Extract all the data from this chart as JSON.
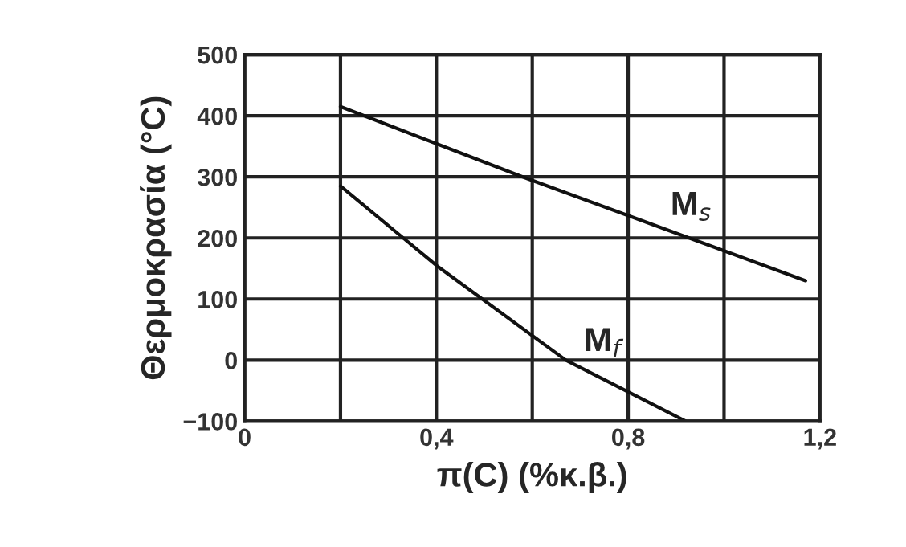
{
  "chart_data": {
    "type": "line",
    "xlabel": "π(C) (%κ.β.)",
    "ylabel": "Θερμοκρασία (°C)",
    "series": [
      {
        "color": "#111111",
        "x": [
          0.2,
          0.58,
          1.17
        ],
        "values": [
          415,
          300,
          130
        ]
      },
      {
        "color": "#111111",
        "x": [
          0.2,
          0.4,
          0.67,
          0.92
        ],
        "values": [
          285,
          155,
          0,
          -100
        ]
      }
    ],
    "annotations": [
      "M$_{s}$",
      "M$_{f}$"
    ],
    "xlim": [
      0,
      1.2
    ],
    "xticks": [
      {
        "value": 0,
        "label": "0"
      },
      {
        "value": 0.2,
        "label": null
      },
      {
        "value": 0.4,
        "label": "0,4"
      },
      {
        "value": 0.6,
        "label": null
      },
      {
        "value": 0.8,
        "label": "0,8"
      },
      {
        "value": 1.0,
        "label": null
      },
      {
        "value": 1.2,
        "label": "1,2"
      }
    ],
    "ylim": [
      -100,
      500
    ],
    "yticks": [
      {
        "value": -100,
        "label": "−100"
      },
      0,
      100,
      200,
      300,
      400,
      500
    ],
    "grid": true,
    "marker": "none",
    "line_style": "solid"
  }
}
